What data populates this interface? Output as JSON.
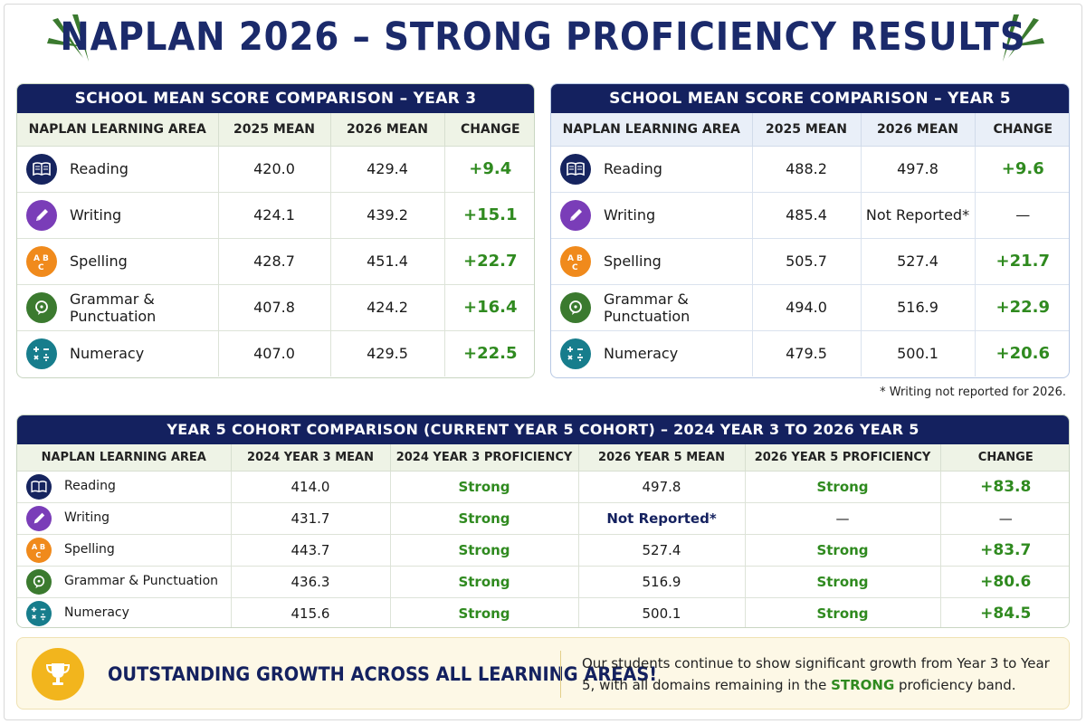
{
  "title": "NAPLAN 2026 – STRONG PROFICIENCY RESULTS",
  "year3": {
    "heading": "SCHOOL MEAN SCORE COMPARISON – YEAR 3",
    "columns": [
      "NAPLAN LEARNING AREA",
      "2025 MEAN",
      "2026 MEAN",
      "CHANGE"
    ],
    "rows": [
      {
        "area": "Reading",
        "icon": "book-icon",
        "m2025": "420.0",
        "m2026": "429.4",
        "change": "+9.4"
      },
      {
        "area": "Writing",
        "icon": "pencil-icon",
        "m2025": "424.1",
        "m2026": "439.2",
        "change": "+15.1"
      },
      {
        "area": "Spelling",
        "icon": "abc-icon",
        "m2025": "428.7",
        "m2026": "451.4",
        "change": "+22.7"
      },
      {
        "area": "Grammar & Punctuation",
        "icon": "speech-bubble-icon",
        "m2025": "407.8",
        "m2026": "424.2",
        "change": "+16.4"
      },
      {
        "area": "Numeracy",
        "icon": "math-symbols-icon",
        "m2025": "407.0",
        "m2026": "429.5",
        "change": "+22.5"
      }
    ]
  },
  "year5": {
    "heading": "SCHOOL MEAN SCORE COMPARISON – YEAR 5",
    "columns": [
      "NAPLAN LEARNING AREA",
      "2025 MEAN",
      "2026 MEAN",
      "CHANGE"
    ],
    "rows": [
      {
        "area": "Reading",
        "icon": "book-icon",
        "m2025": "488.2",
        "m2026": "497.8",
        "change": "+9.6"
      },
      {
        "area": "Writing",
        "icon": "pencil-icon",
        "m2025": "485.4",
        "m2026": "Not Reported*",
        "change": "—"
      },
      {
        "area": "Spelling",
        "icon": "abc-icon",
        "m2025": "505.7",
        "m2026": "527.4",
        "change": "+21.7"
      },
      {
        "area": "Grammar & Punctuation",
        "icon": "speech-bubble-icon",
        "m2025": "494.0",
        "m2026": "516.9",
        "change": "+22.9"
      },
      {
        "area": "Numeracy",
        "icon": "math-symbols-icon",
        "m2025": "479.5",
        "m2026": "500.1",
        "change": "+20.6"
      }
    ],
    "footnote": "* Writing not reported for 2026."
  },
  "cohort": {
    "heading": "YEAR 5 COHORT COMPARISON (CURRENT YEAR 5 COHORT) – 2024 YEAR 3 TO 2026 YEAR 5",
    "columns": [
      "NAPLAN LEARNING AREA",
      "2024 YEAR 3 MEAN",
      "2024 YEAR 3 PROFICIENCY",
      "2026 YEAR 5 MEAN",
      "2026 YEAR 5 PROFICIENCY",
      "CHANGE"
    ],
    "rows": [
      {
        "area": "Reading",
        "icon": "book-icon",
        "y3mean": "414.0",
        "y3prof": "Strong",
        "y5mean": "497.8",
        "y5prof": "Strong",
        "change": "+83.8"
      },
      {
        "area": "Writing",
        "icon": "pencil-icon",
        "y3mean": "431.7",
        "y3prof": "Strong",
        "y5mean": "Not Reported*",
        "y5prof": "—",
        "change": "—"
      },
      {
        "area": "Spelling",
        "icon": "abc-icon",
        "y3mean": "443.7",
        "y3prof": "Strong",
        "y5mean": "527.4",
        "y5prof": "Strong",
        "change": "+83.7"
      },
      {
        "area": "Grammar & Punctuation",
        "icon": "speech-bubble-icon",
        "y3mean": "436.3",
        "y3prof": "Strong",
        "y5mean": "516.9",
        "y5prof": "Strong",
        "change": "+80.6"
      },
      {
        "area": "Numeracy",
        "icon": "math-symbols-icon",
        "y3mean": "415.6",
        "y3prof": "Strong",
        "y5mean": "500.1",
        "y5prof": "Strong",
        "change": "+84.5"
      }
    ]
  },
  "banner": {
    "title": "OUTSTANDING GROWTH ACROSS ALL LEARNING AREAS!",
    "text_before": "Our students continue to show significant growth from Year 3 to Year 5, with all domains remaining in the ",
    "highlight": "STRONG",
    "text_after": " proficiency band."
  },
  "colors": {
    "navy": "#14215f",
    "green": "#2f8a1f",
    "purple": "#7a3db8",
    "orange": "#f08a1c",
    "teal": "#177d8c",
    "gold": "#f2b51d"
  }
}
